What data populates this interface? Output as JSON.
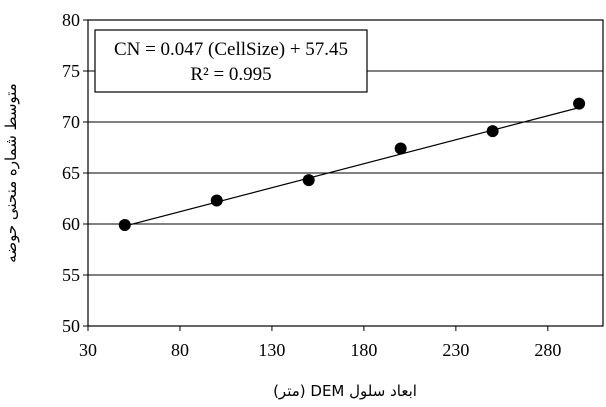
{
  "chart_data": {
    "type": "scatter",
    "x_label": "ابعاد سلول DEM (متر)",
    "y_label": "متوسط شماره منحنی حوضه",
    "x_ticks": [
      "30",
      "80",
      "130",
      "180",
      "230",
      "280"
    ],
    "y_ticks": [
      "50",
      "55",
      "60",
      "65",
      "70",
      "75",
      "80"
    ],
    "xlim": [
      30,
      310
    ],
    "ylim": [
      50,
      80
    ],
    "grid": "horizontal",
    "series": [
      {
        "x": [
          50,
          100,
          150,
          200,
          250,
          297
        ],
        "y": [
          59.9,
          62.3,
          64.3,
          67.4,
          69.1,
          71.8
        ]
      }
    ],
    "trendline": {
      "slope": 0.047,
      "intercept": 57.45,
      "x_range": [
        50,
        297
      ]
    },
    "annotation": {
      "equation": "CN = 0.047 (CellSize) + 57.45",
      "r_squared": "R² = 0.995"
    },
    "colors": {
      "points": "#000000",
      "line": "#000000",
      "grid": "#000000"
    }
  }
}
